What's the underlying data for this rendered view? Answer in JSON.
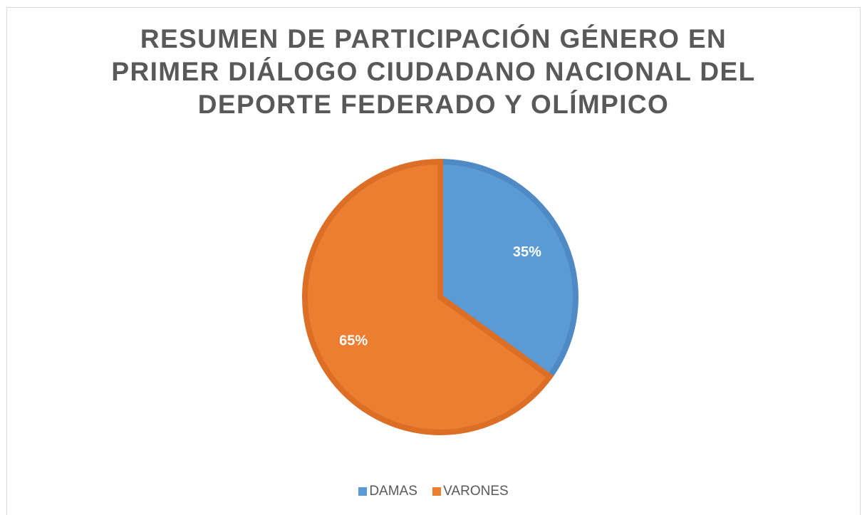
{
  "chart_data": {
    "type": "pie",
    "title_lines": [
      "RESUMEN DE PARTICIPACIÓN GÉNERO EN",
      "PRIMER DIÁLOGO CIUDADANO NACIONAL DEL",
      "DEPORTE FEDERADO Y OLÍMPICO"
    ],
    "categories": [
      "DAMAS",
      "VARONES"
    ],
    "values": [
      35,
      65
    ],
    "data_labels": [
      "35%",
      "65%"
    ],
    "colors": [
      "#5b9bd5",
      "#ed7d31"
    ],
    "edge_colors": [
      "#4f8ac4",
      "#dc6e25"
    ],
    "legend_position": "bottom"
  }
}
